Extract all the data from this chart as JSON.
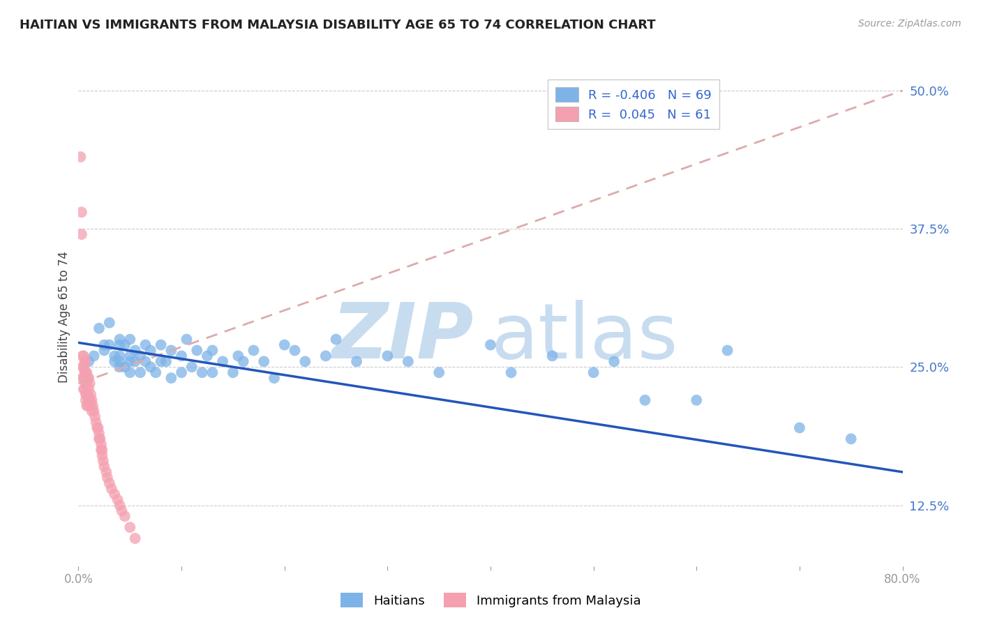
{
  "title": "HAITIAN VS IMMIGRANTS FROM MALAYSIA DISABILITY AGE 65 TO 74 CORRELATION CHART",
  "source": "Source: ZipAtlas.com",
  "ylabel": "Disability Age 65 to 74",
  "xlim": [
    0.0,
    0.8
  ],
  "ylim": [
    0.07,
    0.52
  ],
  "xticks": [
    0.0,
    0.1,
    0.2,
    0.3,
    0.4,
    0.5,
    0.6,
    0.7,
    0.8
  ],
  "xticklabels": [
    "0.0%",
    "",
    "",
    "",
    "",
    "",
    "",
    "",
    "80.0%"
  ],
  "yticks_right": [
    0.125,
    0.25,
    0.375,
    0.5
  ],
  "ytick_labels_right": [
    "12.5%",
    "25.0%",
    "37.5%",
    "50.0%"
  ],
  "R_blue": -0.406,
  "N_blue": 69,
  "R_pink": 0.045,
  "N_pink": 61,
  "blue_color": "#7EB3E8",
  "pink_color": "#F4A0B0",
  "blue_line_color": "#2255BB",
  "pink_line_color": "#EE8899",
  "pink_dash_color": "#DDAAAA",
  "watermark": "ZIPatlas",
  "watermark_color": "#C8DCF0",
  "legend_label_blue": "Haitians",
  "legend_label_pink": "Immigrants from Malaysia",
  "blue_trend_x0": 0.0,
  "blue_trend_y0": 0.272,
  "blue_trend_x1": 0.8,
  "blue_trend_y1": 0.155,
  "pink_trend_x0": 0.0,
  "pink_trend_y0": 0.235,
  "pink_trend_x1": 0.8,
  "pink_trend_y1": 0.5,
  "blue_scatter_x": [
    0.01,
    0.015,
    0.02,
    0.025,
    0.025,
    0.03,
    0.03,
    0.035,
    0.035,
    0.04,
    0.04,
    0.04,
    0.04,
    0.04,
    0.045,
    0.045,
    0.05,
    0.05,
    0.05,
    0.05,
    0.055,
    0.055,
    0.06,
    0.06,
    0.065,
    0.065,
    0.07,
    0.07,
    0.075,
    0.08,
    0.08,
    0.085,
    0.09,
    0.09,
    0.1,
    0.1,
    0.105,
    0.11,
    0.115,
    0.12,
    0.125,
    0.13,
    0.13,
    0.14,
    0.15,
    0.155,
    0.16,
    0.17,
    0.18,
    0.19,
    0.2,
    0.21,
    0.22,
    0.24,
    0.25,
    0.27,
    0.3,
    0.32,
    0.35,
    0.4,
    0.42,
    0.46,
    0.5,
    0.52,
    0.55,
    0.6,
    0.63,
    0.7,
    0.75
  ],
  "blue_scatter_y": [
    0.255,
    0.26,
    0.285,
    0.265,
    0.27,
    0.27,
    0.29,
    0.255,
    0.26,
    0.25,
    0.255,
    0.26,
    0.27,
    0.275,
    0.25,
    0.27,
    0.245,
    0.255,
    0.26,
    0.275,
    0.255,
    0.265,
    0.245,
    0.26,
    0.255,
    0.27,
    0.25,
    0.265,
    0.245,
    0.255,
    0.27,
    0.255,
    0.24,
    0.265,
    0.245,
    0.26,
    0.275,
    0.25,
    0.265,
    0.245,
    0.26,
    0.245,
    0.265,
    0.255,
    0.245,
    0.26,
    0.255,
    0.265,
    0.255,
    0.24,
    0.27,
    0.265,
    0.255,
    0.26,
    0.275,
    0.255,
    0.26,
    0.255,
    0.245,
    0.27,
    0.245,
    0.26,
    0.245,
    0.255,
    0.22,
    0.22,
    0.265,
    0.195,
    0.185
  ],
  "pink_scatter_x": [
    0.002,
    0.003,
    0.003,
    0.004,
    0.004,
    0.004,
    0.005,
    0.005,
    0.005,
    0.005,
    0.006,
    0.006,
    0.006,
    0.006,
    0.007,
    0.007,
    0.007,
    0.007,
    0.007,
    0.008,
    0.008,
    0.008,
    0.008,
    0.009,
    0.009,
    0.009,
    0.01,
    0.01,
    0.01,
    0.011,
    0.011,
    0.012,
    0.012,
    0.013,
    0.013,
    0.014,
    0.015,
    0.016,
    0.017,
    0.018,
    0.019,
    0.02,
    0.02,
    0.021,
    0.022,
    0.022,
    0.023,
    0.023,
    0.024,
    0.025,
    0.027,
    0.028,
    0.03,
    0.032,
    0.035,
    0.038,
    0.04,
    0.042,
    0.045,
    0.05,
    0.055
  ],
  "pink_scatter_y": [
    0.44,
    0.39,
    0.37,
    0.26,
    0.25,
    0.24,
    0.26,
    0.25,
    0.24,
    0.23,
    0.255,
    0.245,
    0.24,
    0.23,
    0.255,
    0.245,
    0.235,
    0.225,
    0.22,
    0.245,
    0.235,
    0.225,
    0.215,
    0.24,
    0.225,
    0.215,
    0.24,
    0.23,
    0.22,
    0.235,
    0.22,
    0.225,
    0.215,
    0.22,
    0.21,
    0.215,
    0.21,
    0.205,
    0.2,
    0.195,
    0.195,
    0.19,
    0.185,
    0.185,
    0.18,
    0.175,
    0.175,
    0.17,
    0.165,
    0.16,
    0.155,
    0.15,
    0.145,
    0.14,
    0.135,
    0.13,
    0.125,
    0.12,
    0.115,
    0.105,
    0.095
  ]
}
